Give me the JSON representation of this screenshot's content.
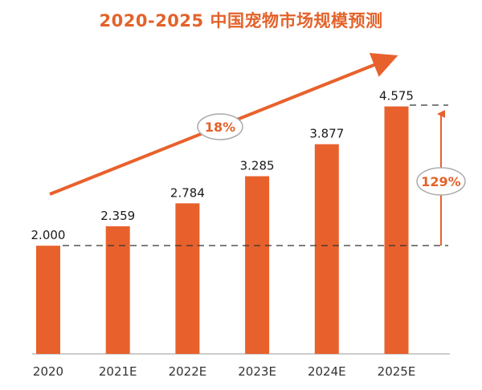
{
  "chart_data": {
    "type": "bar",
    "title": "2020-2025 中国宠物市场规模预测",
    "categories": [
      "2020",
      "2021E",
      "2022E",
      "2023E",
      "2024E",
      "2025E"
    ],
    "values": [
      2.0,
      2.359,
      2.784,
      3.285,
      3.877,
      4.575
    ],
    "value_labels": [
      "2.000",
      "2.359",
      "2.784",
      "3.285",
      "3.877",
      "4.575"
    ],
    "xlabel": "",
    "ylabel": "",
    "grid": false,
    "legend": "none",
    "annotations": {
      "growth_rate": "18%",
      "total_growth": "129%"
    },
    "colors": {
      "bar": "#e8612c",
      "accent": "#e3622a",
      "title": "#e3622a"
    }
  }
}
